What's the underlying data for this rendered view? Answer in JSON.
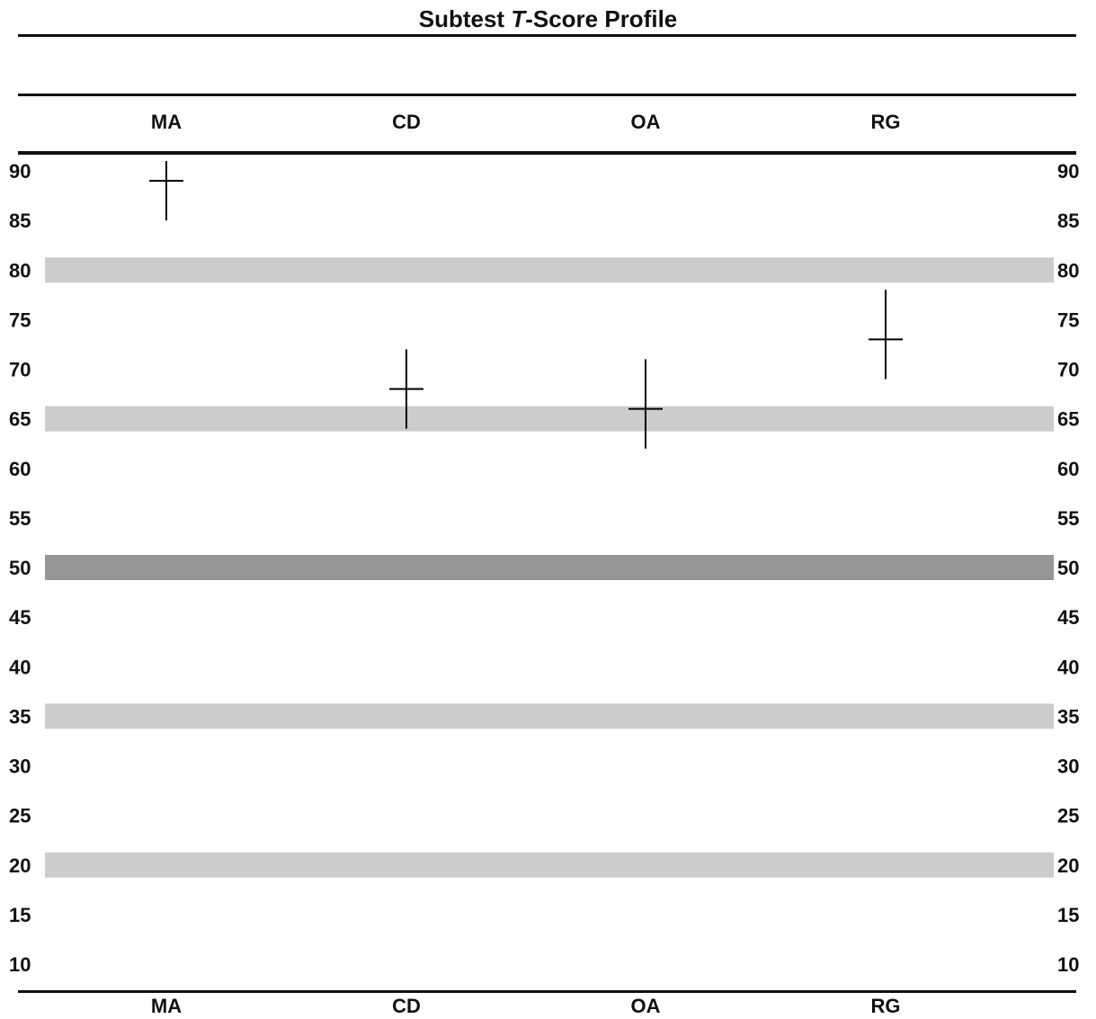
{
  "chart_data": {
    "type": "scatter",
    "title_parts": [
      "Subtest ",
      "T",
      "-Score Profile"
    ],
    "categories": [
      "MA",
      "CD",
      "OA",
      "RG"
    ],
    "y_ticks": [
      90,
      85,
      80,
      75,
      70,
      65,
      60,
      55,
      50,
      45,
      40,
      35,
      30,
      25,
      20,
      15,
      10
    ],
    "ylim": [
      10,
      90
    ],
    "points": [
      {
        "category": "MA",
        "score": 89,
        "ci": [
          85,
          91
        ]
      },
      {
        "category": "CD",
        "score": 68,
        "ci": [
          64,
          72
        ]
      },
      {
        "category": "OA",
        "score": 66,
        "ci": [
          62,
          71
        ]
      },
      {
        "category": "RG",
        "score": 73,
        "ci": [
          69,
          78
        ]
      }
    ],
    "bands": [
      {
        "value": 80,
        "color": "#cccccc"
      },
      {
        "value": 65,
        "color": "#cccccc"
      },
      {
        "value": 50,
        "color": "#959595"
      },
      {
        "value": 35,
        "color": "#cccccc"
      },
      {
        "value": 20,
        "color": "#cccccc"
      }
    ],
    "grid": false,
    "legend": "none"
  }
}
